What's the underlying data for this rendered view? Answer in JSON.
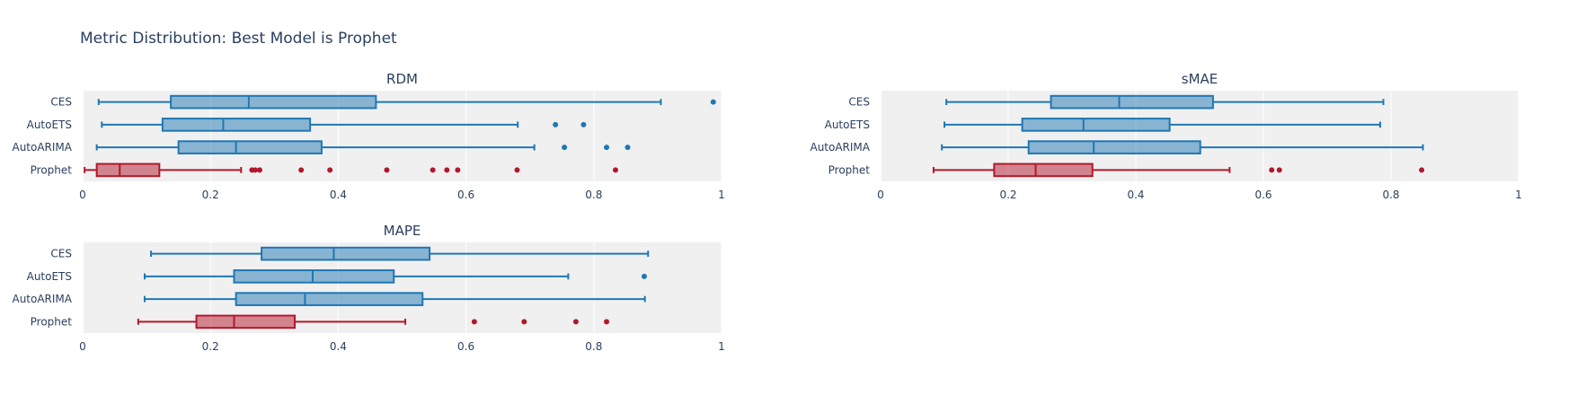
{
  "title": "Metric Distribution: Best Model is Prophet",
  "colors": {
    "default_box": "#1f77b4",
    "best_box": "#b2182b",
    "plot_bg": "#f0f0f0",
    "text": "#2a3f5f"
  },
  "x_ticks": [
    "0",
    "0.2",
    "0.4",
    "0.6",
    "0.8",
    "1"
  ],
  "chart_data": [
    {
      "type": "box",
      "title": "RDM",
      "xlim": [
        0,
        1
      ],
      "grid": true,
      "categories": [
        "CES",
        "AutoETS",
        "AutoARIMA",
        "Prophet"
      ],
      "series": [
        {
          "category": "CES",
          "min": 0.025,
          "q1": 0.138,
          "median": 0.26,
          "q3": 0.459,
          "max": 0.905,
          "outliers": [
            0.987
          ],
          "highlight": false
        },
        {
          "category": "AutoETS",
          "min": 0.03,
          "q1": 0.125,
          "median": 0.22,
          "q3": 0.356,
          "max": 0.681,
          "outliers": [
            0.74,
            0.784
          ],
          "highlight": false
        },
        {
          "category": "AutoARIMA",
          "min": 0.022,
          "q1": 0.15,
          "median": 0.24,
          "q3": 0.374,
          "max": 0.707,
          "outliers": [
            0.754,
            0.82,
            0.853
          ],
          "highlight": false
        },
        {
          "category": "Prophet",
          "min": 0.003,
          "q1": 0.022,
          "median": 0.058,
          "q3": 0.12,
          "max": 0.248,
          "outliers": [
            0.265,
            0.27,
            0.277,
            0.342,
            0.387,
            0.476,
            0.548,
            0.57,
            0.587,
            0.68,
            0.834
          ],
          "highlight": true
        }
      ]
    },
    {
      "type": "box",
      "title": "sMAE",
      "xlim": [
        0,
        1
      ],
      "grid": true,
      "categories": [
        "CES",
        "AutoETS",
        "AutoARIMA",
        "Prophet"
      ],
      "series": [
        {
          "category": "CES",
          "min": 0.103,
          "q1": 0.267,
          "median": 0.374,
          "q3": 0.521,
          "max": 0.788,
          "outliers": [],
          "highlight": false
        },
        {
          "category": "AutoETS",
          "min": 0.1,
          "q1": 0.222,
          "median": 0.318,
          "q3": 0.453,
          "max": 0.783,
          "outliers": [],
          "highlight": false
        },
        {
          "category": "AutoARIMA",
          "min": 0.096,
          "q1": 0.232,
          "median": 0.334,
          "q3": 0.501,
          "max": 0.85,
          "outliers": [],
          "highlight": false
        },
        {
          "category": "Prophet",
          "min": 0.083,
          "q1": 0.178,
          "median": 0.243,
          "q3": 0.332,
          "max": 0.547,
          "outliers": [
            0.613,
            0.625,
            0.848
          ],
          "highlight": true
        }
      ]
    },
    {
      "type": "box",
      "title": "MAPE",
      "xlim": [
        0,
        1
      ],
      "grid": true,
      "categories": [
        "CES",
        "AutoETS",
        "AutoARIMA",
        "Prophet"
      ],
      "series": [
        {
          "category": "CES",
          "min": 0.107,
          "q1": 0.28,
          "median": 0.393,
          "q3": 0.543,
          "max": 0.885,
          "outliers": [],
          "highlight": false
        },
        {
          "category": "AutoETS",
          "min": 0.097,
          "q1": 0.237,
          "median": 0.36,
          "q3": 0.487,
          "max": 0.76,
          "outliers": [
            0.879
          ],
          "highlight": false
        },
        {
          "category": "AutoARIMA",
          "min": 0.097,
          "q1": 0.24,
          "median": 0.348,
          "q3": 0.532,
          "max": 0.88,
          "outliers": [],
          "highlight": false
        },
        {
          "category": "Prophet",
          "min": 0.087,
          "q1": 0.178,
          "median": 0.237,
          "q3": 0.332,
          "max": 0.505,
          "outliers": [
            0.613,
            0.691,
            0.772,
            0.82
          ],
          "highlight": true
        }
      ]
    }
  ]
}
